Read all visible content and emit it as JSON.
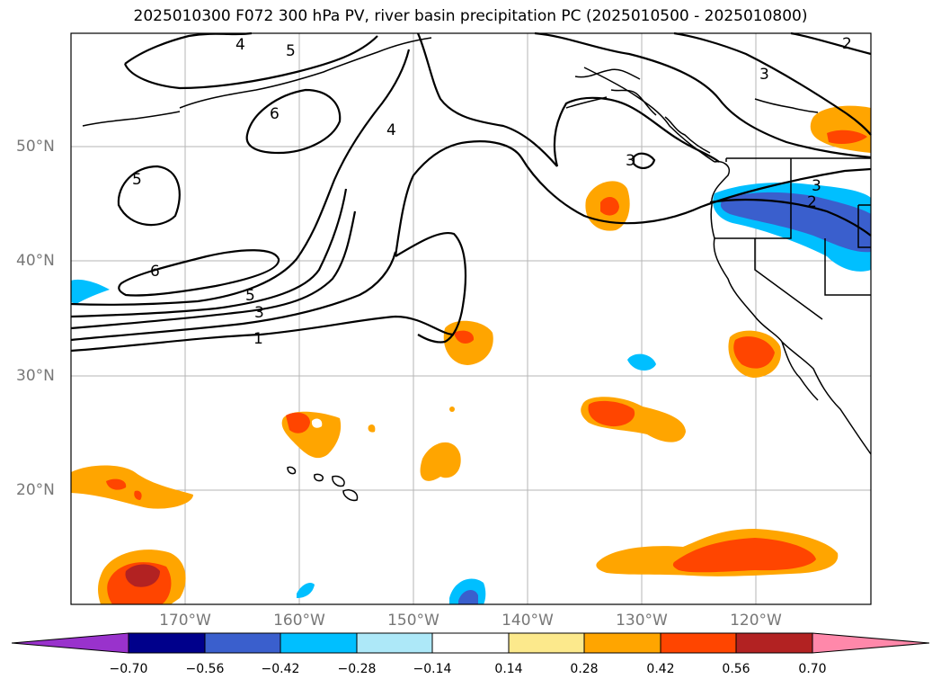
{
  "title": "2025010300 F072 300 hPa PV, river basin precipitation PC (2025010500 - 2025010800)",
  "map": {
    "lat_labels": [
      "50°N",
      "40°N",
      "30°N",
      "20°N"
    ],
    "lon_labels": [
      "170°W",
      "160°W",
      "150°W",
      "140°W",
      "130°W",
      "120°W"
    ],
    "pv_contour_labels": [
      "1",
      "2",
      "3",
      "4",
      "5",
      "6"
    ]
  },
  "colorbar": {
    "ticks": [
      "−0.70",
      "−0.56",
      "−0.42",
      "−0.28",
      "−0.14",
      "0.14",
      "0.28",
      "0.42",
      "0.56",
      "0.70"
    ],
    "colors": [
      "#9932cc",
      "#00008b",
      "#3a5fcd",
      "#00bfff",
      "#ade8f8",
      "#ffffff",
      "#fce98c",
      "#ffa500",
      "#ff4500",
      "#b22222",
      "#ff88aa"
    ]
  },
  "colors": {
    "land_outline": "#000000",
    "grid": "#b0b0b0",
    "label_gray": "#777777"
  }
}
